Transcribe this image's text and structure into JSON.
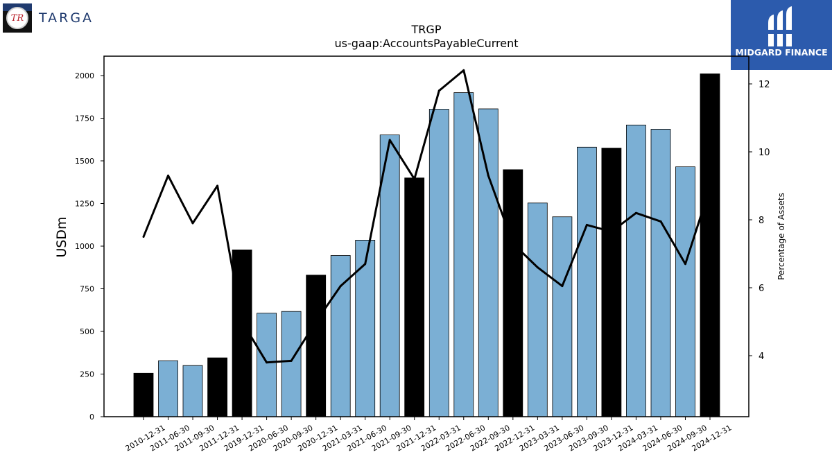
{
  "logos": {
    "left": {
      "monogram": "TR",
      "wordmark": "TARGA"
    },
    "right": {
      "wordmark": "MIDGARD FINANCE"
    }
  },
  "colors": {
    "bar_quarter": "#7bafd4",
    "bar_year_end": "#000000",
    "line": "#000000",
    "brand_blue": "#2c5bad",
    "targa_navy": "#1f3a6e"
  },
  "chart_data": {
    "type": "bar",
    "title": "TRGP",
    "subtitle": "us-gaap:AccountsPayableCurrent",
    "ylabel": "USDm",
    "y2label": "Percentage of Assets",
    "ylim": [
      0,
      2110
    ],
    "y2lim": [
      2.2,
      12.5
    ],
    "yticks": [
      "0",
      "250",
      "500",
      "750",
      "1000",
      "1250",
      "1500",
      "1750",
      "2000"
    ],
    "y2ticks": [
      "4",
      "6",
      "8",
      "10",
      "12"
    ],
    "grid": false,
    "categories": [
      "2010-12-31",
      "2011-06-30",
      "2011-09-30",
      "2011-12-31",
      "2019-12-31",
      "2020-06-30",
      "2020-09-30",
      "2020-12-31",
      "2021-03-31",
      "2021-06-30",
      "2021-09-30",
      "2021-12-31",
      "2022-03-31",
      "2022-06-30",
      "2022-09-30",
      "2022-12-31",
      "2023-03-31",
      "2023-06-30",
      "2023-09-30",
      "2023-12-31",
      "2024-03-31",
      "2024-06-30",
      "2024-09-30",
      "2024-12-31"
    ],
    "series": [
      {
        "kind": "bar",
        "values": [
          255,
          328,
          300,
          345,
          978,
          607,
          617,
          830,
          945,
          1035,
          1652,
          1400,
          1803,
          1900,
          1805,
          1448,
          1253,
          1172,
          1580,
          1575,
          1710,
          1685,
          1465,
          2010
        ],
        "year_end": [
          true,
          false,
          false,
          true,
          true,
          false,
          false,
          true,
          false,
          false,
          false,
          true,
          false,
          false,
          false,
          true,
          false,
          false,
          false,
          true,
          false,
          false,
          false,
          true
        ]
      },
      {
        "kind": "line",
        "axis": "right",
        "values": [
          7.5,
          9.3,
          7.9,
          9.0,
          5.0,
          3.8,
          3.85,
          5.0,
          6.05,
          6.7,
          10.35,
          9.2,
          11.8,
          12.4,
          9.3,
          7.3,
          6.6,
          6.05,
          7.85,
          7.65,
          8.2,
          7.95,
          6.7,
          8.95
        ]
      }
    ]
  }
}
